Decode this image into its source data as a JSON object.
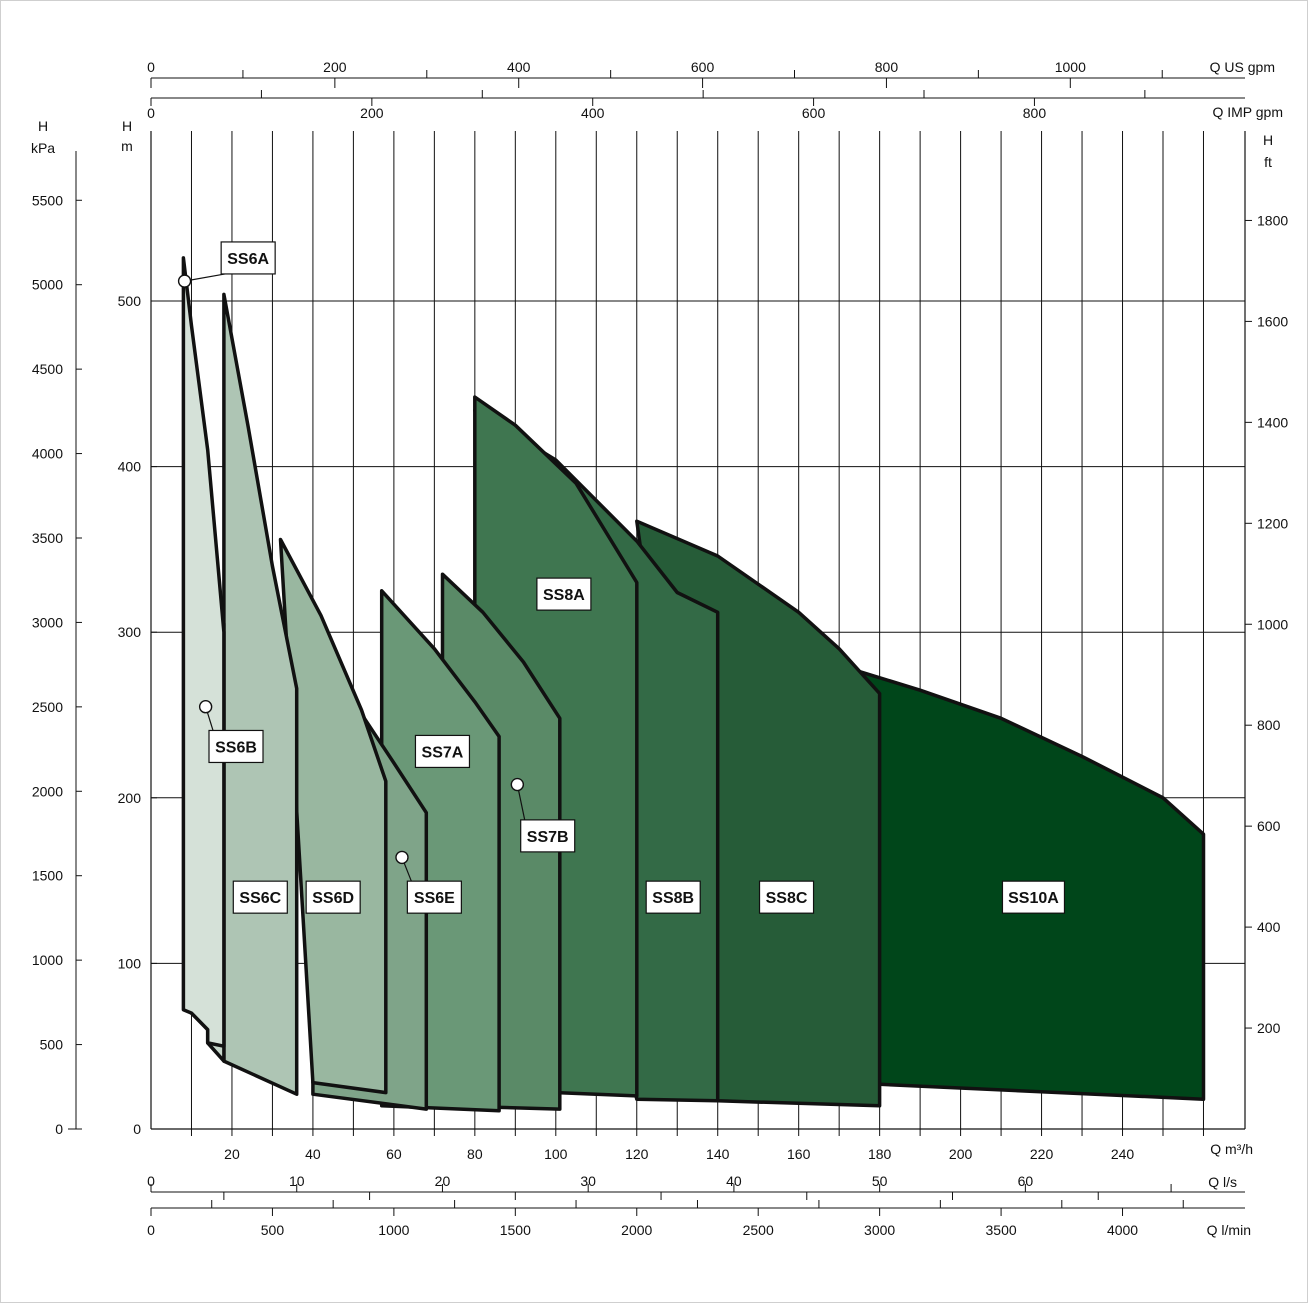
{
  "colors": {
    "SS6A": "#d5e1d8",
    "SS6B": "#c8d8cc",
    "SS6C": "#aec5b4",
    "SS6D": "#99b7a0",
    "SS6E": "#7fa489",
    "SS7A": "#6a9877",
    "SS7B": "#5a8a67",
    "SS8A": "#3f7650",
    "SS8B": "#336a46",
    "SS8C": "#265c38",
    "SS10A": "#00461a",
    "outline": "#111111",
    "grid": "#111111"
  },
  "chart_data": {
    "type": "area",
    "xlabel": "Q m³/h",
    "ylabel": "H m",
    "xlim": [
      0,
      264
    ],
    "ylim": [
      0,
      600
    ],
    "x_ticks": [
      20,
      40,
      60,
      80,
      100,
      120,
      140,
      160,
      180,
      200,
      220,
      240
    ],
    "y_ticks": [
      0,
      100,
      200,
      300,
      400,
      500
    ],
    "axes": {
      "left_kpa": {
        "label_top": "H",
        "label_bottom": "kPa",
        "ticks": [
          "0",
          "500",
          "1000",
          "1500",
          "2000",
          "2500",
          "3000",
          "3500",
          "4000",
          "4500",
          "5000",
          "5500"
        ]
      },
      "left_m": {
        "label_top": "H",
        "label_bottom": "m",
        "ticks": [
          "0",
          "100",
          "200",
          "300",
          "400",
          "500"
        ]
      },
      "right_ft": {
        "label_top": "H",
        "label_bottom": "ft",
        "ticks": [
          "200",
          "400",
          "600",
          "800",
          "1000",
          "1200",
          "1400",
          "1600",
          "1800"
        ]
      },
      "top_us_gpm": {
        "label": "Q US gpm",
        "ticks": [
          "0",
          "200",
          "400",
          "600",
          "800",
          "1000"
        ]
      },
      "top_imp_gpm": {
        "label": "Q IMP gpm",
        "ticks": [
          "0",
          "200",
          "400",
          "600",
          "800"
        ]
      },
      "bottom_m3h": {
        "label": "Q m³/h",
        "ticks": [
          "20",
          "40",
          "60",
          "80",
          "100",
          "120",
          "140",
          "160",
          "180",
          "200",
          "220",
          "240"
        ]
      },
      "bottom_ls": {
        "label": "Q l/s",
        "ticks": [
          "0",
          "10",
          "20",
          "30",
          "40",
          "50",
          "60"
        ]
      },
      "bottom_lmin": {
        "label": "Q l/min",
        "ticks": [
          "0",
          "500",
          "1000",
          "1500",
          "2000",
          "2500",
          "3000",
          "3500",
          "4000"
        ]
      }
    },
    "series": [
      {
        "name": "SS10A",
        "label_at": [
          218,
          140
        ],
        "outline": [
          [
            170,
            280
          ],
          [
            190,
            265
          ],
          [
            210,
            248
          ],
          [
            230,
            225
          ],
          [
            250,
            200
          ],
          [
            260,
            178
          ],
          [
            260,
            18
          ],
          [
            180,
            27
          ]
        ]
      },
      {
        "name": "SS8C",
        "label_at": [
          157,
          140
        ],
        "outline": [
          [
            120,
            367
          ],
          [
            140,
            346
          ],
          [
            160,
            312
          ],
          [
            170,
            290
          ],
          [
            180,
            263
          ],
          [
            180,
            14
          ],
          [
            140,
            17
          ]
        ]
      },
      {
        "name": "SS8B",
        "label_at": [
          129,
          140
        ],
        "outline": [
          [
            80,
            434
          ],
          [
            100,
            404
          ],
          [
            120,
            355
          ],
          [
            130,
            324
          ],
          [
            140,
            312
          ],
          [
            140,
            17
          ],
          [
            120,
            18
          ]
        ]
      },
      {
        "name": "SS8A",
        "label_at": [
          102,
          323
        ],
        "outline": [
          [
            80,
            442
          ],
          [
            90,
            425
          ],
          [
            105,
            390
          ],
          [
            120,
            330
          ],
          [
            120,
            20
          ],
          [
            80,
            24
          ]
        ]
      },
      {
        "name": "SS7B",
        "label_at": [
          98,
          177
        ],
        "callout": [
          90.5,
          208
        ],
        "outline": [
          [
            72,
            335
          ],
          [
            82,
            312
          ],
          [
            92,
            282
          ],
          [
            101,
            248
          ],
          [
            101,
            12
          ],
          [
            72,
            14
          ]
        ]
      },
      {
        "name": "SS7A",
        "label_at": [
          72,
          228
        ],
        "outline": [
          [
            57,
            325
          ],
          [
            70,
            290
          ],
          [
            80,
            258
          ],
          [
            86,
            237
          ],
          [
            86,
            11
          ],
          [
            57,
            14
          ]
        ]
      },
      {
        "name": "SS6E",
        "label_at": [
          70,
          140
        ],
        "callout": [
          62,
          164
        ],
        "outline": [
          [
            40,
            300
          ],
          [
            50,
            258
          ],
          [
            60,
            221
          ],
          [
            68,
            191
          ],
          [
            68,
            12
          ],
          [
            40,
            21
          ]
        ]
      },
      {
        "name": "SS6D",
        "label_at": [
          45,
          140
        ],
        "outline": [
          [
            32,
            356
          ],
          [
            42,
            310
          ],
          [
            52,
            253
          ],
          [
            58,
            210
          ],
          [
            58,
            22
          ],
          [
            40,
            28
          ]
        ]
      },
      {
        "name": "SS6C",
        "label_at": [
          27,
          140
        ],
        "outline": [
          [
            18,
            504
          ],
          [
            24,
            424
          ],
          [
            30,
            340
          ],
          [
            36,
            266
          ],
          [
            36,
            21
          ],
          [
            18,
            41
          ]
        ]
      },
      {
        "name": "SS6B",
        "label_at": [
          21,
          231
        ],
        "callout": [
          13.5,
          255
        ],
        "outline": [
          [
            10,
            415
          ],
          [
            15,
            360
          ],
          [
            18,
            305
          ],
          [
            18,
            41
          ],
          [
            14,
            52
          ],
          [
            14,
            60
          ],
          [
            10,
            70
          ]
        ]
      },
      {
        "name": "SS6A",
        "label_at": [
          24,
          526
        ],
        "callout": [
          8.3,
          512
        ],
        "outline": [
          [
            8,
            526
          ],
          [
            10,
            485
          ],
          [
            14,
            410
          ],
          [
            18,
            300
          ],
          [
            18,
            50
          ],
          [
            14,
            52
          ],
          [
            14,
            60
          ],
          [
            10,
            70
          ],
          [
            8,
            72
          ]
        ]
      }
    ]
  }
}
